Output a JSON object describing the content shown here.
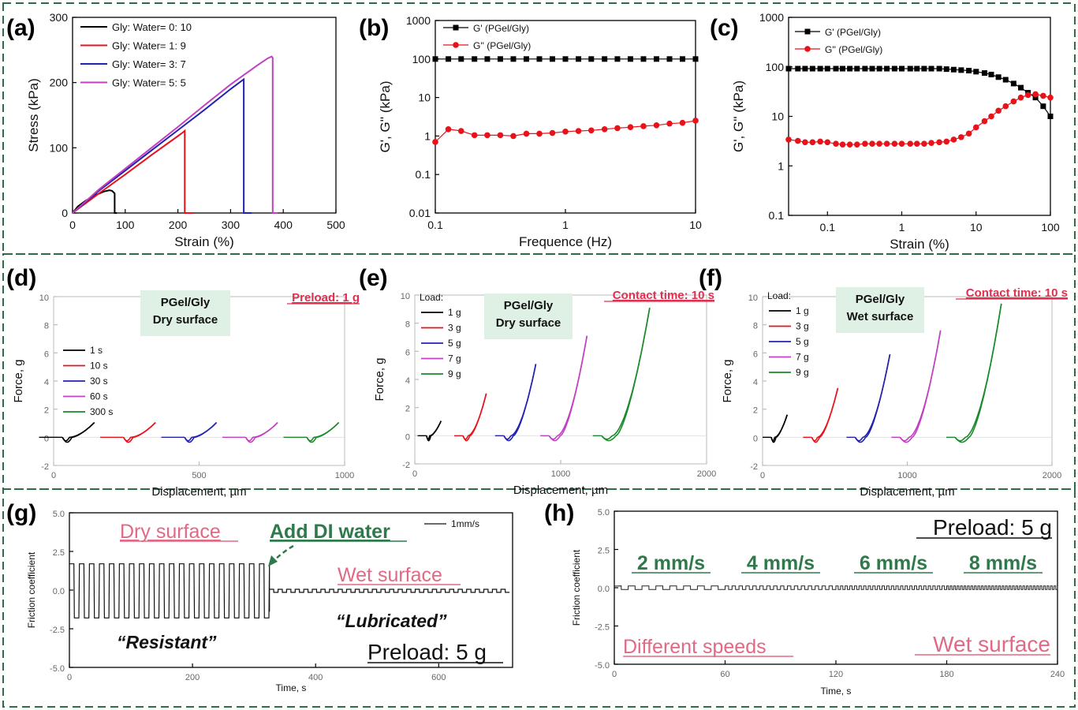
{
  "panels": [
    {
      "id": "a",
      "letter": "(a)"
    },
    {
      "id": "b",
      "letter": "(b)"
    },
    {
      "id": "c",
      "letter": "(c)"
    },
    {
      "id": "d",
      "letter": "(d)"
    },
    {
      "id": "e",
      "letter": "(e)"
    },
    {
      "id": "f",
      "letter": "(f)"
    },
    {
      "id": "g",
      "letter": "(g)"
    },
    {
      "id": "h",
      "letter": "(h)"
    }
  ],
  "colors": {
    "frame": "#2e6b47",
    "black": "#000000",
    "red": "#e8121a",
    "blue": "#2222b0",
    "magenta": "#c040c0",
    "green": "#1a8a2a",
    "pink": "#e06a85",
    "darkgreen": "#2f7a4a",
    "boxfill": "#dff0e4"
  },
  "chart_data": [
    {
      "panel": "a",
      "type": "line",
      "xlabel": "Strain (%)",
      "ylabel": "Stress (kPa)",
      "xlim": [
        0,
        500
      ],
      "ylim": [
        0,
        300
      ],
      "xticks": [
        "0",
        "100",
        "200",
        "300",
        "400",
        "500"
      ],
      "yticks": [
        "0",
        "100",
        "200",
        "300"
      ],
      "series": [
        {
          "name": "Gly: Water= 0: 10",
          "color": "#000000",
          "x": [
            0,
            10,
            25,
            45,
            60,
            70,
            75,
            80,
            80,
            84
          ],
          "y": [
            0,
            10,
            19,
            28,
            33,
            35,
            34,
            30,
            0,
            0
          ]
        },
        {
          "name": "Gly: Water= 1: 9",
          "color": "#e8121a",
          "x": [
            0,
            50,
            100,
            150,
            200,
            210,
            213,
            213,
            230
          ],
          "y": [
            0,
            30,
            59,
            89,
            118,
            124,
            126,
            0,
            0
          ]
        },
        {
          "name": "Gly: Water= 3: 7",
          "color": "#2222b0",
          "x": [
            0,
            50,
            100,
            150,
            200,
            250,
            300,
            323,
            325,
            325,
            340
          ],
          "y": [
            0,
            34,
            65,
            96,
            127,
            158,
            190,
            204,
            205,
            0,
            0
          ]
        },
        {
          "name": "Gly: Water= 5: 5",
          "color": "#c040c0",
          "x": [
            0,
            50,
            100,
            150,
            200,
            250,
            300,
            350,
            370,
            378,
            380,
            380,
            390
          ],
          "y": [
            0,
            36,
            68,
            100,
            132,
            165,
            197,
            226,
            237,
            240,
            238,
            0,
            0
          ]
        }
      ]
    },
    {
      "panel": "b",
      "type": "scatter",
      "xscale": "log",
      "yscale": "log",
      "xlabel": "Frequence (Hz)",
      "ylabel": "G', G'' (kPa)",
      "xlim": [
        0.1,
        10
      ],
      "ylim": [
        0.01,
        1000
      ],
      "xticks": [
        "0.1",
        "1",
        "10"
      ],
      "yticks": [
        "0.01",
        "0.1",
        "1",
        "10",
        "100",
        "1000"
      ],
      "series": [
        {
          "name": "G' (PGel/Gly)",
          "color": "#000000",
          "x": [
            0.1,
            0.126,
            0.158,
            0.2,
            0.251,
            0.316,
            0.398,
            0.501,
            0.631,
            0.794,
            1,
            1.26,
            1.58,
            2,
            2.51,
            3.16,
            3.98,
            5.01,
            6.31,
            7.94,
            10
          ],
          "y": [
            100,
            100,
            100,
            100,
            100,
            100,
            100,
            100,
            100,
            100,
            100,
            100,
            100,
            100,
            100,
            100,
            100,
            100,
            100,
            100,
            100
          ]
        },
        {
          "name": "G'' (PGel/Gly)",
          "color": "#e8121a",
          "x": [
            0.1,
            0.126,
            0.158,
            0.2,
            0.251,
            0.316,
            0.398,
            0.501,
            0.631,
            0.794,
            1,
            1.26,
            1.58,
            2,
            2.51,
            3.16,
            3.98,
            5.01,
            6.31,
            7.94,
            10
          ],
          "y": [
            0.7,
            1.5,
            1.35,
            1.05,
            1.05,
            1.05,
            1.0,
            1.15,
            1.15,
            1.2,
            1.3,
            1.35,
            1.4,
            1.5,
            1.6,
            1.7,
            1.8,
            1.9,
            2.1,
            2.2,
            2.5
          ]
        }
      ]
    },
    {
      "panel": "c",
      "type": "scatter",
      "xscale": "log",
      "yscale": "log",
      "xlabel": "Strain (%)",
      "ylabel": "G', G'' (kPa)",
      "xlim": [
        0.03,
        100
      ],
      "ylim": [
        0.1,
        1000
      ],
      "xticks": [
        "0.1",
        "1",
        "10",
        "100"
      ],
      "yticks": [
        "0.1",
        "1",
        "10",
        "100",
        "1000"
      ],
      "series": [
        {
          "name": "G' (PGel/Gly)",
          "color": "#000000",
          "x": [
            0.03,
            0.04,
            0.05,
            0.063,
            0.08,
            0.1,
            0.13,
            0.16,
            0.2,
            0.25,
            0.32,
            0.4,
            0.5,
            0.63,
            0.8,
            1,
            1.3,
            1.6,
            2,
            2.5,
            3.2,
            4,
            5,
            6.3,
            8,
            10,
            13,
            16,
            20,
            25,
            32,
            40,
            50,
            63,
            80,
            100
          ],
          "y": [
            92,
            92,
            92,
            92,
            92,
            92,
            92,
            92,
            92,
            92,
            92,
            92,
            92,
            92,
            92,
            92,
            92,
            92,
            92,
            92,
            92,
            90,
            88,
            86,
            84,
            80,
            75,
            70,
            62,
            55,
            46,
            38,
            30,
            24,
            16,
            10
          ]
        },
        {
          "name": "G'' (PGel/Gly)",
          "color": "#e8121a",
          "x": [
            0.03,
            0.04,
            0.05,
            0.063,
            0.08,
            0.1,
            0.13,
            0.16,
            0.2,
            0.25,
            0.32,
            0.4,
            0.5,
            0.63,
            0.8,
            1,
            1.3,
            1.6,
            2,
            2.5,
            3.2,
            4,
            5,
            6.3,
            8,
            10,
            13,
            16,
            20,
            25,
            32,
            40,
            50,
            63,
            80,
            100
          ],
          "y": [
            3.4,
            3.2,
            3.0,
            3.0,
            3.1,
            3.0,
            2.8,
            2.7,
            2.7,
            2.7,
            2.8,
            2.8,
            2.8,
            2.8,
            2.8,
            2.8,
            2.8,
            2.8,
            2.8,
            2.9,
            3.0,
            3.1,
            3.4,
            3.8,
            4.5,
            6,
            8,
            10,
            13,
            16,
            20,
            24,
            27,
            28,
            26,
            24
          ]
        }
      ]
    },
    {
      "panel": "d",
      "type": "line",
      "xlabel": "Displacement, µm",
      "ylabel": "Force, g",
      "xlim": [
        0,
        1000
      ],
      "ylim": [
        -2,
        10
      ],
      "xticks": [
        "0",
        "500",
        "1000"
      ],
      "yticks": [
        "-2",
        "0",
        "2",
        "4",
        "6",
        "8",
        "10"
      ],
      "annotation_box": [
        "PGel/Gly",
        "Dry surface"
      ],
      "annotation_right": "Preload: 1 g",
      "series": [
        {
          "name": "1 s",
          "color": "#000000",
          "start": 30,
          "peak": 1.05,
          "span": 110
        },
        {
          "name": "10 s",
          "color": "#e8121a",
          "start": 240,
          "peak": 1.05,
          "span": 110
        },
        {
          "name": "30 s",
          "color": "#2222b0",
          "start": 450,
          "peak": 1.05,
          "span": 110
        },
        {
          "name": "60 s",
          "color": "#c040c0",
          "start": 660,
          "peak": 1.05,
          "span": 110
        },
        {
          "name": "300 s",
          "color": "#1a8a2a",
          "start": 870,
          "peak": 1.05,
          "span": 110
        }
      ]
    },
    {
      "panel": "e",
      "type": "line",
      "xlabel": "Displacement, µm",
      "ylabel": "Force, g",
      "xlim": [
        0,
        2000
      ],
      "ylim": [
        -2,
        10
      ],
      "xticks": [
        "0",
        "1000",
        "2000"
      ],
      "yticks": [
        "-2",
        "0",
        "2",
        "4",
        "6",
        "8",
        "10"
      ],
      "legend_title": "Load:",
      "annotation_box": [
        "PGel/Gly",
        "Dry surface"
      ],
      "annotation_right": "Contact time: 10 s",
      "series": [
        {
          "name": "1 g",
          "color": "#000000",
          "start": 80,
          "peak": 1.05,
          "span": 100
        },
        {
          "name": "3 g",
          "color": "#e8121a",
          "start": 330,
          "peak": 3.0,
          "span": 160
        },
        {
          "name": "5 g",
          "color": "#2222b0",
          "start": 610,
          "peak": 5.1,
          "span": 220
        },
        {
          "name": "7 g",
          "color": "#c040c0",
          "start": 920,
          "peak": 7.1,
          "span": 260
        },
        {
          "name": "9 g",
          "color": "#1a8a2a",
          "start": 1280,
          "peak": 9.1,
          "span": 330
        }
      ]
    },
    {
      "panel": "f",
      "type": "line",
      "xlabel": "Displacement, µm",
      "ylabel": "Force, g",
      "xlim": [
        0,
        2000
      ],
      "ylim": [
        -2,
        10
      ],
      "xticks": [
        "0",
        "1000",
        "2000"
      ],
      "yticks": [
        "-2",
        "0",
        "2",
        "4",
        "6",
        "8",
        "10"
      ],
      "legend_title": "Load:",
      "annotation_box": [
        "PGel/Gly",
        "Wet surface"
      ],
      "annotation_right": "Contact time: 10 s",
      "series": [
        {
          "name": "1 g",
          "color": "#000000",
          "start": 60,
          "peak": 1.6,
          "span": 110
        },
        {
          "name": "3 g",
          "color": "#e8121a",
          "start": 340,
          "peak": 3.5,
          "span": 180
        },
        {
          "name": "5 g",
          "color": "#2222b0",
          "start": 640,
          "peak": 5.9,
          "span": 240
        },
        {
          "name": "7 g",
          "color": "#c040c0",
          "start": 950,
          "peak": 7.6,
          "span": 280
        },
        {
          "name": "9 g",
          "color": "#1a8a2a",
          "start": 1330,
          "peak": 9.5,
          "span": 320
        }
      ]
    },
    {
      "panel": "g",
      "type": "line",
      "xlabel": "Time, s",
      "ylabel": "Friction coefficient",
      "xlim": [
        0,
        720
      ],
      "ylim": [
        -5,
        5
      ],
      "xticks": [
        "0",
        "200",
        "400",
        "600"
      ],
      "yticks": [
        "-5.0",
        "-2.5",
        "0.0",
        "2.5",
        "5.0"
      ],
      "legend": "1mm/s",
      "labels": {
        "dry": "Dry surface",
        "add": "Add DI water",
        "wet": "Wet surface",
        "resistant": "“Resistant”",
        "lubricated": "“Lubricated”",
        "preload": "Preload: 5 g"
      },
      "dry_phase": {
        "t_start": 0,
        "t_end": 325,
        "high": 1.7,
        "low": -1.8,
        "cycles": 20
      },
      "wet_phase": {
        "t_start": 325,
        "t_end": 715,
        "high": 0.05,
        "low": -0.15,
        "cycles": 28
      }
    },
    {
      "panel": "h",
      "type": "line",
      "xlabel": "Time, s",
      "ylabel": "Friction coefficient",
      "xlim": [
        0,
        240
      ],
      "ylim": [
        -5,
        5
      ],
      "xticks": [
        "0",
        "60",
        "120",
        "180",
        "240"
      ],
      "yticks": [
        "-5.0",
        "-2.5",
        "0.0",
        "2.5",
        "5.0"
      ],
      "labels": {
        "preload": "Preload: 5 g",
        "speeds": [
          "2 mm/s",
          "4 mm/s",
          "6 mm/s",
          "8 mm/s"
        ],
        "different": "Different speeds",
        "wet": "Wet surface"
      },
      "segments": [
        {
          "t_start": 0,
          "t_end": 60,
          "cycles": 8
        },
        {
          "t_start": 60,
          "t_end": 120,
          "cycles": 16
        },
        {
          "t_start": 120,
          "t_end": 180,
          "cycles": 24
        },
        {
          "t_start": 180,
          "t_end": 240,
          "cycles": 32
        }
      ],
      "amplitude": 0.12
    }
  ]
}
